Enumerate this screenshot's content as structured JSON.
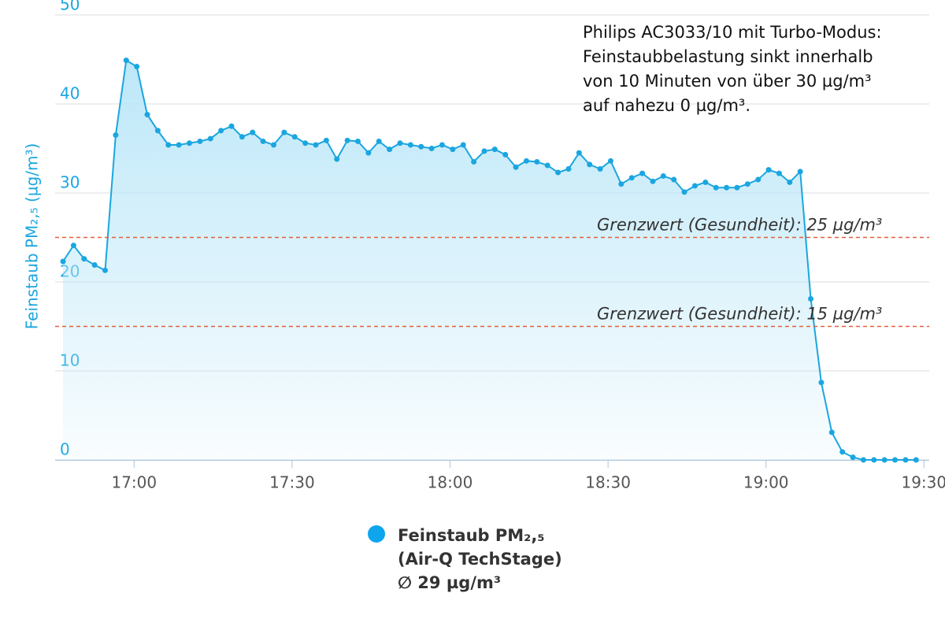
{
  "chart_data": {
    "type": "area",
    "y_label": "Feinstaub PM₂,₅ (µg/m³)",
    "annotation": [
      "Philips AC3033/10 mit Turbo-Modus:",
      "Feinstaubbelastung sinkt innerhalb",
      "von 10 Minuten von über 30 µg/m³",
      "auf nahezu 0 µg/m³."
    ],
    "plot_lines": [
      {
        "value": 25,
        "label": "Grenzwert (Gesundheit): 25 µg/m³",
        "color": "#e0603a"
      },
      {
        "value": 15,
        "label": "Grenzwert (Gesundheit): 15 µg/m³",
        "color": "#e0603a"
      }
    ],
    "xlim": [
      1005,
      1171
    ],
    "xticks": [
      {
        "value": 1020,
        "label": "17:00"
      },
      {
        "value": 1050,
        "label": "17:30"
      },
      {
        "value": 1080,
        "label": "18:00"
      },
      {
        "value": 1110,
        "label": "18:30"
      },
      {
        "value": 1140,
        "label": "19:00"
      },
      {
        "value": 1170,
        "label": "19:30"
      }
    ],
    "ylim": [
      0,
      50
    ],
    "yticks": [
      0,
      10,
      20,
      30,
      40,
      50
    ],
    "grid": true,
    "x": [
      1006.5,
      1008.5,
      1010.5,
      1012.5,
      1014.5,
      1016.5,
      1018.5,
      1020.5,
      1022.5,
      1024.5,
      1026.5,
      1028.5,
      1030.5,
      1032.5,
      1034.5,
      1036.5,
      1038.5,
      1040.5,
      1042.5,
      1044.5,
      1046.5,
      1048.5,
      1050.5,
      1052.5,
      1054.5,
      1056.5,
      1058.5,
      1060.5,
      1062.5,
      1064.5,
      1066.5,
      1068.5,
      1070.5,
      1072.5,
      1074.5,
      1076.5,
      1078.5,
      1080.5,
      1082.5,
      1084.5,
      1086.5,
      1088.5,
      1090.5,
      1092.5,
      1094.5,
      1096.5,
      1098.5,
      1100.5,
      1102.5,
      1104.5,
      1106.5,
      1108.5,
      1110.5,
      1112.5,
      1114.5,
      1116.5,
      1118.5,
      1120.5,
      1122.5,
      1124.5,
      1126.5,
      1128.5,
      1130.5,
      1132.5,
      1134.5,
      1136.5,
      1138.5,
      1140.5,
      1142.5,
      1144.5,
      1146.5,
      1148.5,
      1150.5,
      1152.5,
      1154.5,
      1156.5,
      1158.5,
      1160.5,
      1162.5,
      1164.5,
      1166.5,
      1168.5
    ],
    "series": [
      {
        "name": [
          "Feinstaub PM₂,₅",
          "(Air-Q TechStage)",
          "∅ 29 µg/m³"
        ],
        "color": "#1aa6e0",
        "legend_color": "#0ea5ef",
        "values": [
          22.3,
          24.1,
          22.6,
          21.9,
          21.3,
          36.5,
          44.9,
          44.2,
          38.8,
          37.0,
          35.4,
          35.4,
          35.6,
          35.8,
          36.1,
          37.0,
          37.5,
          36.3,
          36.8,
          35.8,
          35.4,
          36.8,
          36.3,
          35.6,
          35.4,
          35.9,
          33.8,
          35.9,
          35.8,
          34.5,
          35.8,
          34.9,
          35.6,
          35.4,
          35.2,
          35.0,
          35.4,
          34.9,
          35.4,
          33.5,
          34.7,
          34.9,
          34.3,
          32.9,
          33.6,
          33.5,
          33.1,
          32.3,
          32.7,
          34.5,
          33.2,
          32.7,
          33.6,
          31.0,
          31.7,
          32.2,
          31.3,
          31.9,
          31.5,
          30.1,
          30.8,
          31.2,
          30.6,
          30.6,
          30.6,
          31.0,
          31.5,
          32.6,
          32.2,
          31.2,
          32.4,
          18.1,
          8.7,
          3.1,
          0.9,
          0.3,
          0,
          0,
          0,
          0,
          0,
          0
        ]
      }
    ]
  }
}
